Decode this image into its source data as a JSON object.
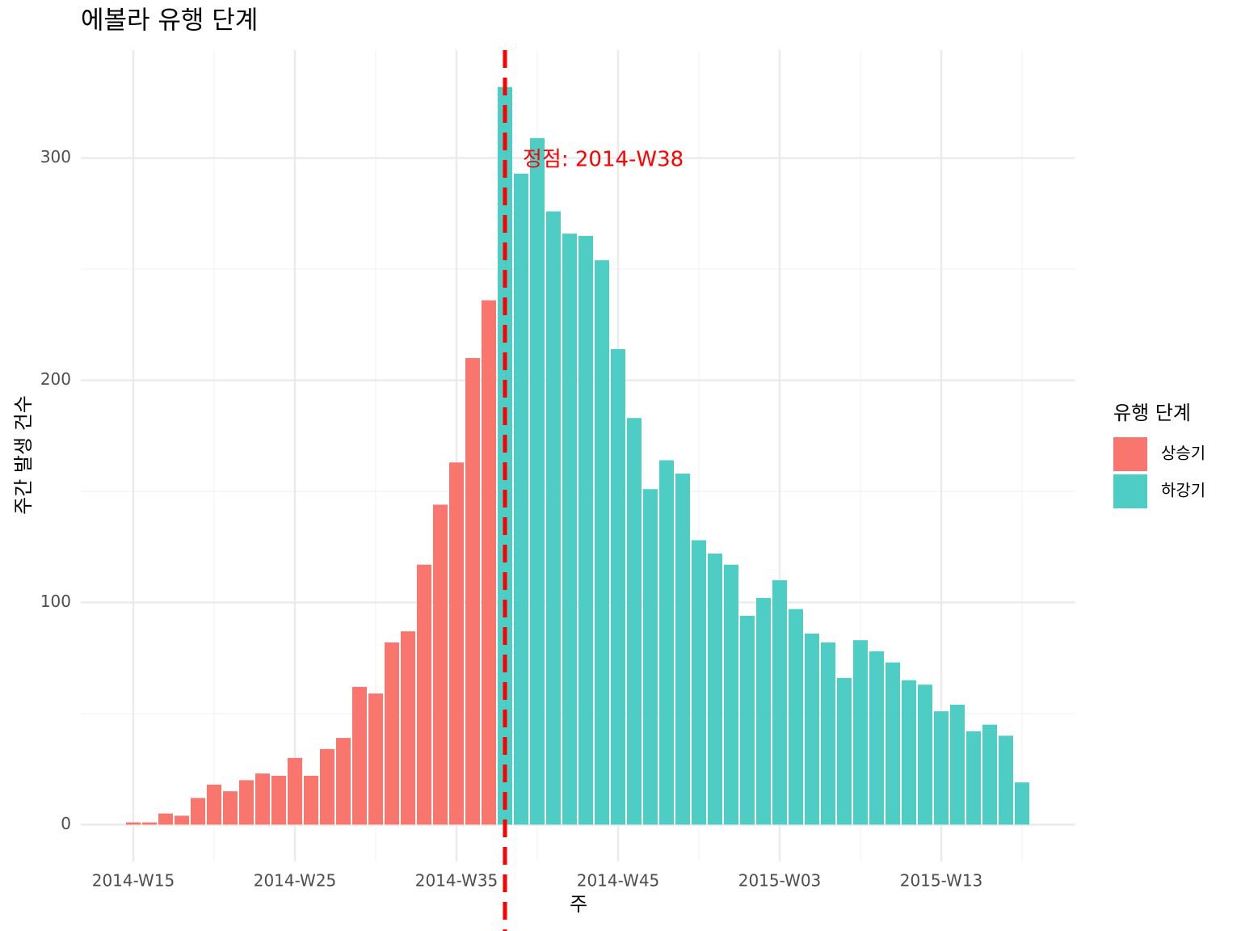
{
  "chart_data": {
    "type": "bar",
    "title": "에볼라 유행 단계",
    "x_label": "주",
    "y_label": "주간 발생 건수",
    "legend_title": "유행 단계",
    "categories": [
      "2014-W15",
      "2014-W16",
      "2014-W17",
      "2014-W18",
      "2014-W19",
      "2014-W20",
      "2014-W21",
      "2014-W22",
      "2014-W23",
      "2014-W24",
      "2014-W25",
      "2014-W26",
      "2014-W27",
      "2014-W28",
      "2014-W29",
      "2014-W30",
      "2014-W31",
      "2014-W32",
      "2014-W33",
      "2014-W34",
      "2014-W35",
      "2014-W36",
      "2014-W37",
      "2014-W38",
      "2014-W39",
      "2014-W40",
      "2014-W41",
      "2014-W42",
      "2014-W43",
      "2014-W44",
      "2014-W45",
      "2014-W46",
      "2014-W47",
      "2014-W48",
      "2014-W49",
      "2014-W50",
      "2014-W51",
      "2014-W52",
      "2015-W01",
      "2015-W02",
      "2015-W03",
      "2015-W04",
      "2015-W05",
      "2015-W06",
      "2015-W07",
      "2015-W08",
      "2015-W09",
      "2015-W10",
      "2015-W11",
      "2015-W12",
      "2015-W13",
      "2015-W14",
      "2015-W15",
      "2015-W16",
      "2015-W17",
      "2015-W18"
    ],
    "series": [
      {
        "name": "상승기",
        "color": "#f8766d",
        "values": [
          1,
          1,
          5,
          4,
          12,
          18,
          15,
          20,
          23,
          22,
          30,
          22,
          34,
          39,
          62,
          59,
          82,
          87,
          117,
          144,
          163,
          210,
          236,
          null,
          null,
          null,
          null,
          null,
          null,
          null,
          null,
          null,
          null,
          null,
          null,
          null,
          null,
          null,
          null,
          null,
          null,
          null,
          null,
          null,
          null,
          null,
          null,
          null,
          null,
          null,
          null,
          null,
          null,
          null,
          null,
          null
        ]
      },
      {
        "name": "하강기",
        "color": "#4ecdc4",
        "values": [
          null,
          null,
          null,
          null,
          null,
          null,
          null,
          null,
          null,
          null,
          null,
          null,
          null,
          null,
          null,
          null,
          null,
          null,
          null,
          null,
          null,
          null,
          null,
          332,
          293,
          309,
          276,
          266,
          265,
          254,
          214,
          183,
          151,
          164,
          158,
          128,
          122,
          117,
          94,
          102,
          110,
          97,
          86,
          82,
          66,
          83,
          78,
          73,
          65,
          63,
          51,
          54,
          42,
          45,
          40,
          19
        ]
      }
    ],
    "xticks": [
      "2014-W15",
      "2014-W25",
      "2014-W35",
      "2014-W45",
      "2015-W03",
      "2015-W13"
    ],
    "ylim": [
      -16.6,
      348.6
    ],
    "yticks": [
      0,
      100,
      200,
      300
    ],
    "y_minor_ticks": [
      50,
      150,
      250
    ],
    "grid": true,
    "vline": {
      "x": "2014-W38",
      "color": "#ff0000"
    },
    "annotation": "정점: 2014-W38",
    "legend_position": "right"
  }
}
